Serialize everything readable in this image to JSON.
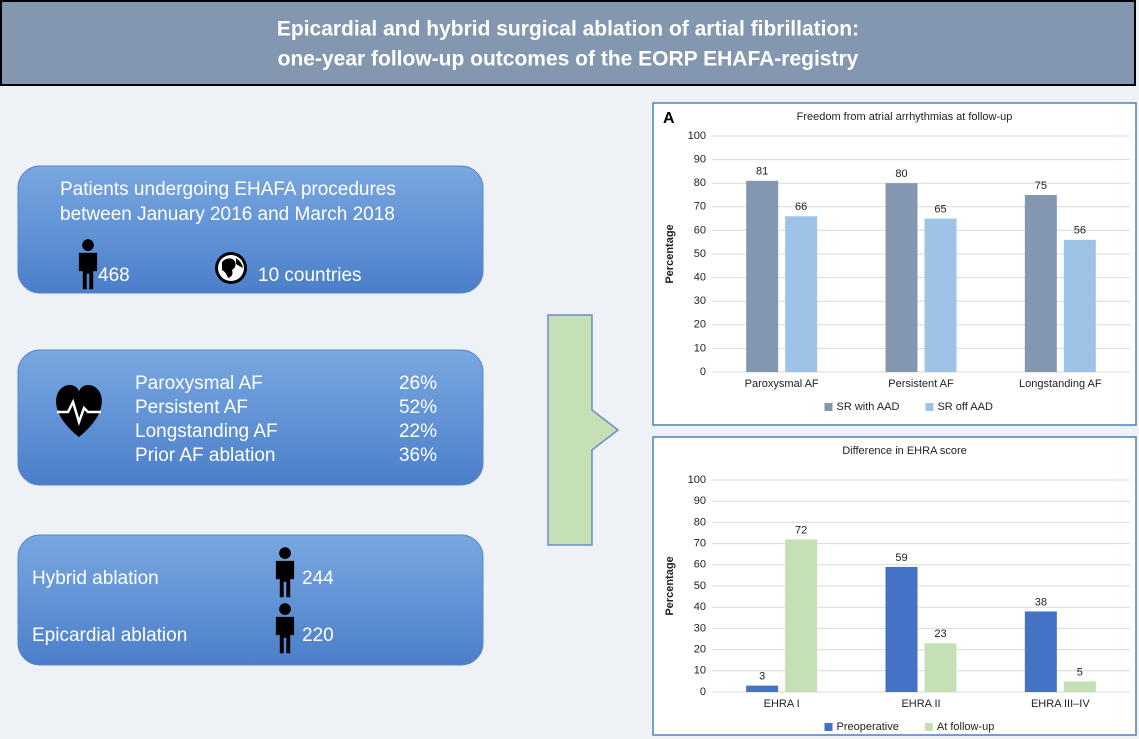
{
  "header": {
    "title_lines": [
      "Epicardial and hybrid surgical ablation of artial fibrillation:",
      "one-year follow-up outcomes of the EORP EHAFA-registry"
    ]
  },
  "box1": {
    "lines": [
      "Patients undergoing EHAFA procedures",
      "between January 2016 and March 2018"
    ],
    "patients": "468",
    "countries": "10 countries"
  },
  "box2": {
    "rows": [
      {
        "label": "Paroxysmal AF",
        "value": "26%"
      },
      {
        "label": "Persistent AF",
        "value": "52%"
      },
      {
        "label": "Longstanding AF",
        "value": "22%"
      },
      {
        "label": "Prior AF ablation",
        "value": "36%"
      }
    ]
  },
  "box3": {
    "rows": [
      {
        "label": "Hybrid ablation",
        "value": "244"
      },
      {
        "label": "Epicardial ablation",
        "value": "220"
      }
    ]
  },
  "chart_data": [
    {
      "type": "bar",
      "panel_label": "A",
      "title": "Freedom from atrial arrhythmias at follow-up",
      "ylabel": "Percentage",
      "categories": [
        "Paroxysmal AF",
        "Persistent AF",
        "Longstanding AF"
      ],
      "series": [
        {
          "name": "SR with AAD",
          "color": "#8497b0",
          "values": [
            81,
            80,
            75
          ]
        },
        {
          "name": "SR off AAD",
          "color": "#9dc3e6",
          "values": [
            66,
            65,
            56
          ]
        }
      ],
      "ylim": [
        0,
        100
      ],
      "yticks": [
        0,
        10,
        20,
        30,
        40,
        50,
        60,
        70,
        80,
        90,
        100
      ],
      "grid": true
    },
    {
      "type": "bar",
      "title": "Difference in EHRA score",
      "ylabel": "Percentage",
      "categories": [
        "EHRA I",
        "EHRA II",
        "EHRA III–IV"
      ],
      "series": [
        {
          "name": "Preoperative",
          "color": "#4472c4",
          "values": [
            3,
            59,
            38
          ]
        },
        {
          "name": "At follow-up",
          "color": "#c5e0b4",
          "values": [
            72,
            23,
            5
          ]
        }
      ],
      "ylim": [
        0,
        100
      ],
      "yticks": [
        0,
        10,
        20,
        30,
        40,
        50,
        60,
        70,
        80,
        90,
        100
      ],
      "grid": true
    }
  ]
}
